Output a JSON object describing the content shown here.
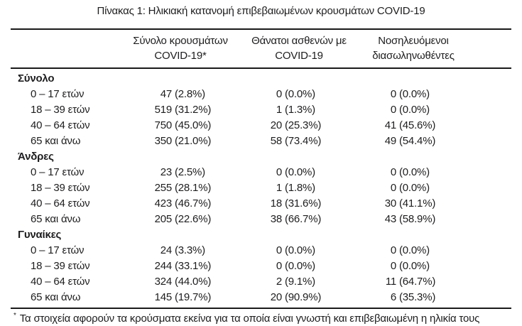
{
  "page": {
    "title": "Πίνακας 1: Ηλικιακή κατανομή επιβεβαιωμένων κρουσμάτων COVID-19",
    "footnote_marker": "*",
    "footnote": "Τα στοιχεία αφορούν τα κρούσματα εκείνα για τα οποία είναι γνωστή και επιβεβαιωμένη η ηλικία τους"
  },
  "colors": {
    "background": "#ffffff",
    "text": "#1d1d1f",
    "rule": "#1a1a1a"
  },
  "table": {
    "columns": [
      {
        "line1": "Σύνολο κρουσμάτων",
        "line2": "COVID-19*"
      },
      {
        "line1": "Θάνατοι ασθενών με",
        "line2": "COVID-19"
      },
      {
        "line1": "Νοσηλευόμενοι",
        "line2": "διασωληνωθέντες"
      }
    ],
    "sections": [
      {
        "label": "Σύνολο",
        "rows": [
          {
            "label": "0 – 17 ετών",
            "cells": [
              {
                "count": "47",
                "pct": "(2.8%)"
              },
              {
                "count": "0",
                "pct": "(0.0%)"
              },
              {
                "count": "0",
                "pct": "(0.0%)"
              }
            ]
          },
          {
            "label": "18 – 39 ετών",
            "cells": [
              {
                "count": "519",
                "pct": "(31.2%)"
              },
              {
                "count": "1",
                "pct": "(1.3%)"
              },
              {
                "count": "0",
                "pct": "(0.0%)"
              }
            ]
          },
          {
            "label": "40 – 64 ετών",
            "cells": [
              {
                "count": "750",
                "pct": "(45.0%)"
              },
              {
                "count": "20",
                "pct": "(25.3%)"
              },
              {
                "count": "41",
                "pct": "(45.6%)"
              }
            ]
          },
          {
            "label": "65 και άνω",
            "cells": [
              {
                "count": "350",
                "pct": "(21.0%)"
              },
              {
                "count": "58",
                "pct": "(73.4%)"
              },
              {
                "count": "49",
                "pct": "(54.4%)"
              }
            ]
          }
        ]
      },
      {
        "label": "Άνδρες",
        "rows": [
          {
            "label": "0 – 17 ετών",
            "cells": [
              {
                "count": "23",
                "pct": "(2.5%)"
              },
              {
                "count": "0",
                "pct": "(0.0%)"
              },
              {
                "count": "0",
                "pct": "(0.0%)"
              }
            ]
          },
          {
            "label": "18 – 39 ετών",
            "cells": [
              {
                "count": "255",
                "pct": "(28.1%)"
              },
              {
                "count": "1",
                "pct": "(1.8%)"
              },
              {
                "count": "0",
                "pct": "(0.0%)"
              }
            ]
          },
          {
            "label": "40 – 64 ετών",
            "cells": [
              {
                "count": "423",
                "pct": "(46.7%)"
              },
              {
                "count": "18",
                "pct": "(31.6%)"
              },
              {
                "count": "30",
                "pct": "(41.1%)"
              }
            ]
          },
          {
            "label": "65 και άνω",
            "cells": [
              {
                "count": "205",
                "pct": "(22.6%)"
              },
              {
                "count": "38",
                "pct": "(66.7%)"
              },
              {
                "count": "43",
                "pct": "(58.9%)"
              }
            ]
          }
        ]
      },
      {
        "label": "Γυναίκες",
        "rows": [
          {
            "label": "0 – 17 ετών",
            "cells": [
              {
                "count": "24",
                "pct": "(3.3%)"
              },
              {
                "count": "0",
                "pct": "(0.0%)"
              },
              {
                "count": "0",
                "pct": "(0.0%)"
              }
            ]
          },
          {
            "label": "18 – 39 ετών",
            "cells": [
              {
                "count": "244",
                "pct": "(33.1%)"
              },
              {
                "count": "0",
                "pct": "(0.0%)"
              },
              {
                "count": "0",
                "pct": "(0.0%)"
              }
            ]
          },
          {
            "label": "40 – 64 ετών",
            "cells": [
              {
                "count": "324",
                "pct": "(44.0%)"
              },
              {
                "count": "2",
                "pct": "(9.1%)"
              },
              {
                "count": "11",
                "pct": "(64.7%)"
              }
            ]
          },
          {
            "label": "65 και άνω",
            "cells": [
              {
                "count": "145",
                "pct": "(19.7%)"
              },
              {
                "count": "20",
                "pct": "(90.9%)"
              },
              {
                "count": "6",
                "pct": "(35.3%)"
              }
            ]
          }
        ]
      }
    ]
  }
}
